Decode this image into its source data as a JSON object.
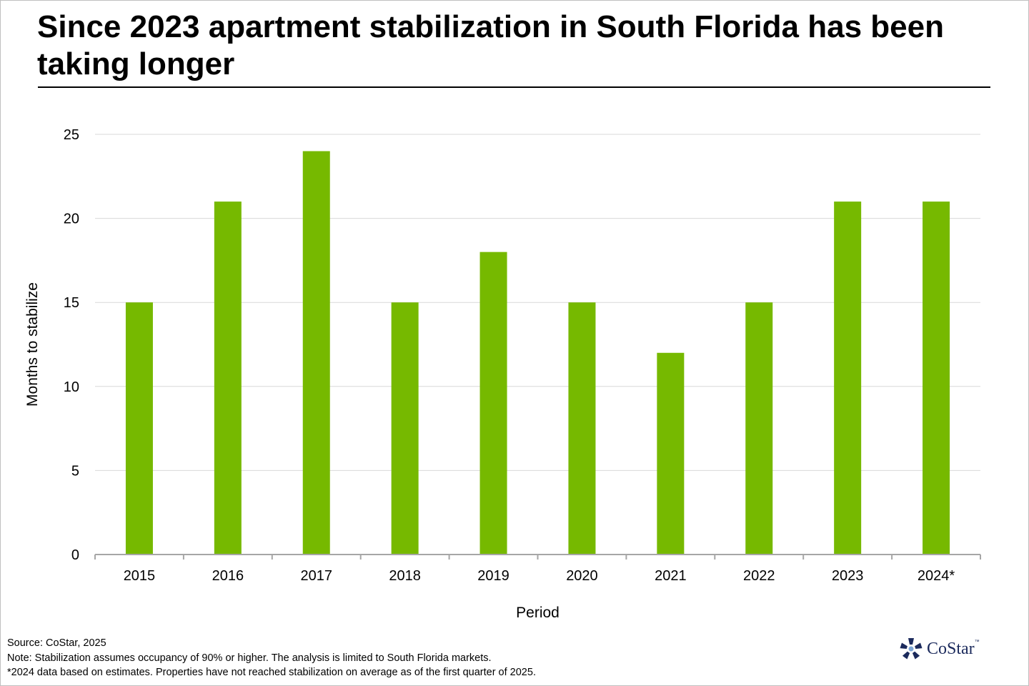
{
  "header": {
    "title": "Since 2023 apartment stabilization in South Florida has been taking longer"
  },
  "chart_data": {
    "type": "bar",
    "categories": [
      "2015",
      "2016",
      "2017",
      "2018",
      "2019",
      "2020",
      "2021",
      "2022",
      "2023",
      "2024*"
    ],
    "values": [
      15,
      21,
      24,
      15,
      18,
      15,
      12,
      15,
      21,
      21
    ],
    "xlabel": "Period",
    "ylabel": "Months to stabilize",
    "ylim": [
      0,
      25
    ],
    "yticks": [
      0,
      5,
      10,
      15,
      20,
      25
    ],
    "grid": true,
    "bar_color": "#76b900",
    "grid_color": "#d9d9d9",
    "axis_color": "#a6a6a6"
  },
  "footer": {
    "source": "Source: CoStar, 2025",
    "note": "Note: Stabilization assumes occupancy of 90% or higher. The analysis is limited to South Florida markets.",
    "estimate_note": "*2024 data based on estimates. Properties have not reached stabilization on average as of the first quarter of 2025."
  },
  "logo": {
    "name": "CoStar",
    "trademark": "™",
    "color": "#1b2a5c"
  }
}
